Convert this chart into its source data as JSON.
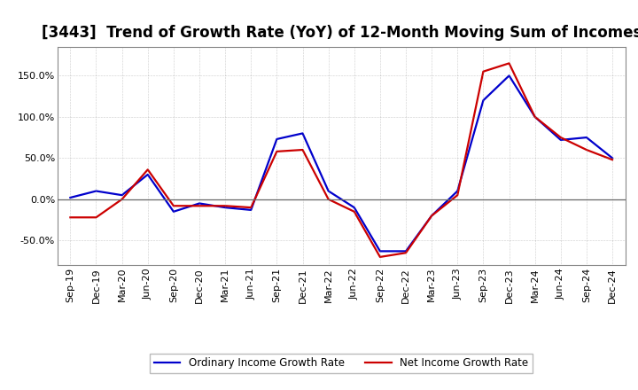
{
  "title": "[3443]  Trend of Growth Rate (YoY) of 12-Month Moving Sum of Incomes",
  "x_labels": [
    "Sep-19",
    "Dec-19",
    "Mar-20",
    "Jun-20",
    "Sep-20",
    "Dec-20",
    "Mar-21",
    "Jun-21",
    "Sep-21",
    "Dec-21",
    "Mar-22",
    "Jun-22",
    "Sep-22",
    "Dec-22",
    "Mar-23",
    "Jun-23",
    "Sep-23",
    "Dec-23",
    "Mar-24",
    "Jun-24",
    "Sep-24",
    "Dec-24"
  ],
  "ordinary_income": [
    2.0,
    10.0,
    5.0,
    30.0,
    -15.0,
    -5.0,
    -10.0,
    -13.0,
    73.0,
    80.0,
    10.0,
    -10.0,
    -63.0,
    -63.0,
    -20.0,
    10.0,
    120.0,
    150.0,
    100.0,
    72.0,
    75.0,
    50.0
  ],
  "net_income": [
    -22.0,
    -22.0,
    0.0,
    36.0,
    -8.0,
    -8.0,
    -8.0,
    -10.0,
    58.0,
    60.0,
    0.0,
    -15.0,
    -70.0,
    -65.0,
    -20.0,
    5.0,
    155.0,
    165.0,
    100.0,
    75.0,
    60.0,
    48.0
  ],
  "ordinary_color": "#0000cc",
  "net_color": "#cc0000",
  "ylim": [
    -80,
    185
  ],
  "yticks": [
    -50.0,
    0.0,
    50.0,
    100.0,
    150.0
  ],
  "legend_ordinary": "Ordinary Income Growth Rate",
  "legend_net": "Net Income Growth Rate",
  "background_color": "#ffffff",
  "grid_color": "#888888",
  "title_fontsize": 12,
  "tick_fontsize": 8
}
